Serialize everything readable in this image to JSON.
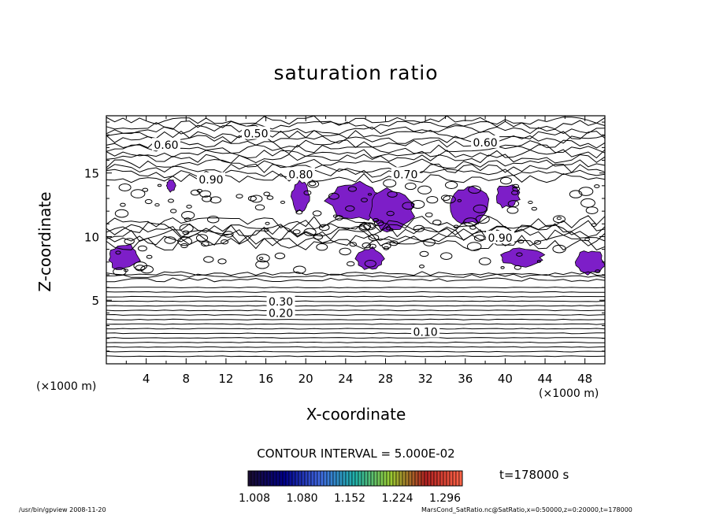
{
  "chart_data": {
    "type": "contour",
    "title": "saturation ratio",
    "xlabel": "X-coordinate",
    "ylabel": "Z-coordinate",
    "x_unit": "(×1000 m)",
    "y_unit": "(×1000 m)",
    "xlim": [
      0,
      50
    ],
    "ylim": [
      0,
      19.5
    ],
    "x_ticks": [
      "4",
      "8",
      "12",
      "16",
      "20",
      "24",
      "28",
      "32",
      "36",
      "40",
      "44",
      "48"
    ],
    "y_ticks": [
      "5",
      "10",
      "15"
    ],
    "contour_interval_text": "CONTOUR INTERVAL = 5.000E-02",
    "time_text": "t=178000 s",
    "contour_labels": [
      {
        "text": "0.10",
        "x": 32,
        "z": 2.5
      },
      {
        "text": "0.20",
        "x": 17.5,
        "z": 4.0
      },
      {
        "text": "0.30",
        "x": 17.5,
        "z": 4.9
      },
      {
        "text": "0.50",
        "x": 15,
        "z": 18.1
      },
      {
        "text": "0.60",
        "x": 6,
        "z": 17.2
      },
      {
        "text": "0.60",
        "x": 38,
        "z": 17.4
      },
      {
        "text": "0.70",
        "x": 30,
        "z": 14.9
      },
      {
        "text": "0.80",
        "x": 19.5,
        "z": 14.9
      },
      {
        "text": "0.90",
        "x": 10.5,
        "z": 14.5
      },
      {
        "text": "0.90",
        "x": 39.5,
        "z": 9.9
      }
    ],
    "supersaturated_regions": [
      {
        "x": [
          18.5,
          20.5
        ],
        "z": [
          11.8,
          14.5
        ]
      },
      {
        "x": [
          22,
          28
        ],
        "z": [
          11.2,
          14.4
        ]
      },
      {
        "x": [
          26,
          31
        ],
        "z": [
          10.3,
          13.8
        ]
      },
      {
        "x": [
          34.5,
          38.5
        ],
        "z": [
          10.8,
          14.2
        ]
      },
      {
        "x": [
          39,
          41.5
        ],
        "z": [
          12.2,
          14.2
        ]
      },
      {
        "x": [
          0,
          3.5
        ],
        "z": [
          7.3,
          9.5
        ]
      },
      {
        "x": [
          25,
          28
        ],
        "z": [
          7.3,
          9.2
        ]
      },
      {
        "x": [
          39.5,
          44
        ],
        "z": [
          7.6,
          9.1
        ]
      },
      {
        "x": [
          47,
          50
        ],
        "z": [
          7.0,
          9.0
        ]
      },
      {
        "x": [
          6,
          7
        ],
        "z": [
          13.5,
          14.5
        ]
      }
    ],
    "colorbar": {
      "labels": [
        "1.008",
        "1.080",
        "1.152",
        "1.224",
        "1.296"
      ],
      "colors": [
        "#1a0d33",
        "#00008b",
        "#4169e1",
        "#20b2aa",
        "#9acd32",
        "#b22222",
        "#ff6347"
      ]
    },
    "fill_color": "#7d1ec8"
  },
  "footer": {
    "left": "/usr/bin/gpview  2008-11-20",
    "right": "MarsCond_SatRatio.nc@SatRatio,x=0:50000,z=0:20000,t=178000"
  }
}
